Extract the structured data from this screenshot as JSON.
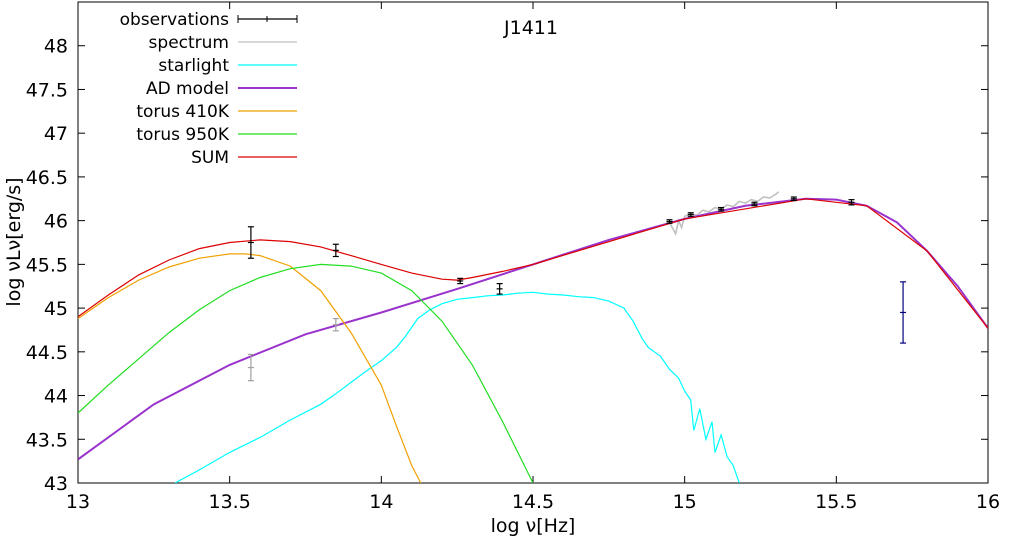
{
  "chart_data": {
    "type": "line",
    "title": "J1411",
    "xlabel": "log ν[Hz]",
    "ylabel": "log νLν[erg/s]",
    "xlim": [
      13,
      16
    ],
    "ylim": [
      43,
      48.5
    ],
    "x_ticks": [
      "13",
      "13.5",
      "14",
      "14.5",
      "15",
      "15.5",
      "16"
    ],
    "y_ticks": [
      "43",
      "43.5",
      "44",
      "44.5",
      "45",
      "45.5",
      "46",
      "46.5",
      "47",
      "47.5",
      "48"
    ],
    "grid": false,
    "legend_position": "top-left",
    "colors": {
      "observations": "#000000",
      "spectrum": "#c0c0c0",
      "starlight": "#00ffff",
      "ad_model": "#9933cc",
      "torus_410": "#f0a000",
      "torus_950": "#22dd22",
      "sum": "#dd0000",
      "upper_point": "#000080",
      "grey_points": "#a0a0a0"
    },
    "legend": [
      "observations",
      "spectrum",
      "starlight",
      "AD model",
      "torus 410K",
      "torus 950K",
      "SUM"
    ],
    "observations": [
      {
        "x": 13.57,
        "y": 45.75,
        "err": 0.18
      },
      {
        "x": 13.85,
        "y": 45.66,
        "err": 0.07
      },
      {
        "x": 14.26,
        "y": 45.31,
        "err": 0.03
      },
      {
        "x": 14.39,
        "y": 45.22,
        "err": 0.06
      },
      {
        "x": 14.95,
        "y": 45.99,
        "err": 0.02
      },
      {
        "x": 15.02,
        "y": 46.07,
        "err": 0.02
      },
      {
        "x": 15.12,
        "y": 46.13,
        "err": 0.02
      },
      {
        "x": 15.23,
        "y": 46.19,
        "err": 0.02
      },
      {
        "x": 15.36,
        "y": 46.25,
        "err": 0.02
      },
      {
        "x": 15.55,
        "y": 46.21,
        "err": 0.03
      }
    ],
    "grey_points": [
      {
        "x": 13.57,
        "y": 44.32,
        "err": 0.15
      },
      {
        "x": 13.85,
        "y": 44.81,
        "err": 0.07
      }
    ],
    "upper_point": {
      "x": 15.72,
      "y": 44.95,
      "err": 0.35
    },
    "series": [
      {
        "name": "spectrum",
        "key": "spectrum",
        "x": [
          14.95,
          14.97,
          14.98,
          14.99,
          15.0,
          15.02,
          15.04,
          15.06,
          15.08,
          15.1,
          15.12,
          15.14,
          15.16,
          15.18,
          15.2,
          15.22,
          15.24,
          15.26,
          15.28,
          15.3,
          15.31
        ],
        "y": [
          45.98,
          45.85,
          46.0,
          45.92,
          46.05,
          46.08,
          46.06,
          46.12,
          46.1,
          46.15,
          46.13,
          46.18,
          46.16,
          46.22,
          46.2,
          46.24,
          46.22,
          46.27,
          46.26,
          46.3,
          46.33
        ]
      },
      {
        "name": "starlight",
        "key": "starlight",
        "x": [
          13.32,
          13.4,
          13.5,
          13.6,
          13.7,
          13.8,
          13.85,
          13.9,
          13.95,
          14.0,
          14.05,
          14.08,
          14.12,
          14.16,
          14.2,
          14.25,
          14.3,
          14.35,
          14.4,
          14.45,
          14.5,
          14.55,
          14.6,
          14.65,
          14.7,
          14.75,
          14.8,
          14.83,
          14.86,
          14.88,
          14.9,
          14.92,
          14.95,
          14.98,
          15.0,
          15.02,
          15.03,
          15.05,
          15.07,
          15.09,
          15.1,
          15.12,
          15.14,
          15.16,
          15.18
        ],
        "y": [
          43.0,
          43.15,
          43.35,
          43.52,
          43.72,
          43.9,
          44.02,
          44.15,
          44.28,
          44.4,
          44.55,
          44.68,
          44.88,
          44.98,
          45.05,
          45.1,
          45.12,
          45.14,
          45.15,
          45.17,
          45.18,
          45.16,
          45.15,
          45.13,
          45.12,
          45.08,
          45.0,
          44.85,
          44.65,
          44.55,
          44.5,
          44.45,
          44.3,
          44.2,
          44.05,
          43.95,
          43.6,
          43.85,
          43.5,
          43.7,
          43.35,
          43.55,
          43.3,
          43.2,
          43.0
        ]
      },
      {
        "name": "AD model",
        "key": "ad_model",
        "x": [
          13.0,
          13.25,
          13.5,
          13.75,
          14.0,
          14.25,
          14.5,
          14.75,
          15.0,
          15.2,
          15.4,
          15.5,
          15.6,
          15.7,
          15.8,
          15.9,
          16.0
        ],
        "y": [
          43.27,
          43.9,
          44.35,
          44.7,
          44.95,
          45.22,
          45.5,
          45.78,
          46.02,
          46.17,
          46.25,
          46.24,
          46.17,
          45.98,
          45.65,
          45.25,
          44.77
        ]
      },
      {
        "name": "torus 410K",
        "key": "torus_410",
        "x": [
          13.0,
          13.1,
          13.2,
          13.3,
          13.4,
          13.5,
          13.55,
          13.6,
          13.7,
          13.8,
          13.9,
          14.0,
          14.05,
          14.1,
          14.13
        ],
        "y": [
          44.88,
          45.12,
          45.32,
          45.47,
          45.57,
          45.62,
          45.62,
          45.6,
          45.48,
          45.2,
          44.72,
          44.12,
          43.65,
          43.2,
          43.0
        ]
      },
      {
        "name": "torus 950K",
        "key": "torus_950",
        "x": [
          13.0,
          13.1,
          13.2,
          13.3,
          13.4,
          13.5,
          13.6,
          13.7,
          13.8,
          13.9,
          14.0,
          14.1,
          14.2,
          14.3,
          14.4,
          14.5
        ],
        "y": [
          43.8,
          44.12,
          44.42,
          44.72,
          44.98,
          45.2,
          45.35,
          45.45,
          45.5,
          45.48,
          45.4,
          45.2,
          44.85,
          44.35,
          43.7,
          43.0
        ]
      },
      {
        "name": "SUM",
        "key": "sum",
        "x": [
          13.0,
          13.1,
          13.2,
          13.3,
          13.4,
          13.5,
          13.6,
          13.7,
          13.8,
          13.9,
          14.0,
          14.1,
          14.2,
          14.25,
          14.3,
          14.4,
          14.5,
          15.0,
          15.4,
          15.6,
          15.8,
          16.0
        ],
        "y": [
          44.9,
          45.15,
          45.38,
          45.55,
          45.68,
          45.75,
          45.78,
          45.76,
          45.7,
          45.6,
          45.5,
          45.4,
          45.33,
          45.32,
          45.35,
          45.42,
          45.5,
          46.02,
          46.25,
          46.17,
          45.65,
          44.77
        ]
      }
    ]
  }
}
